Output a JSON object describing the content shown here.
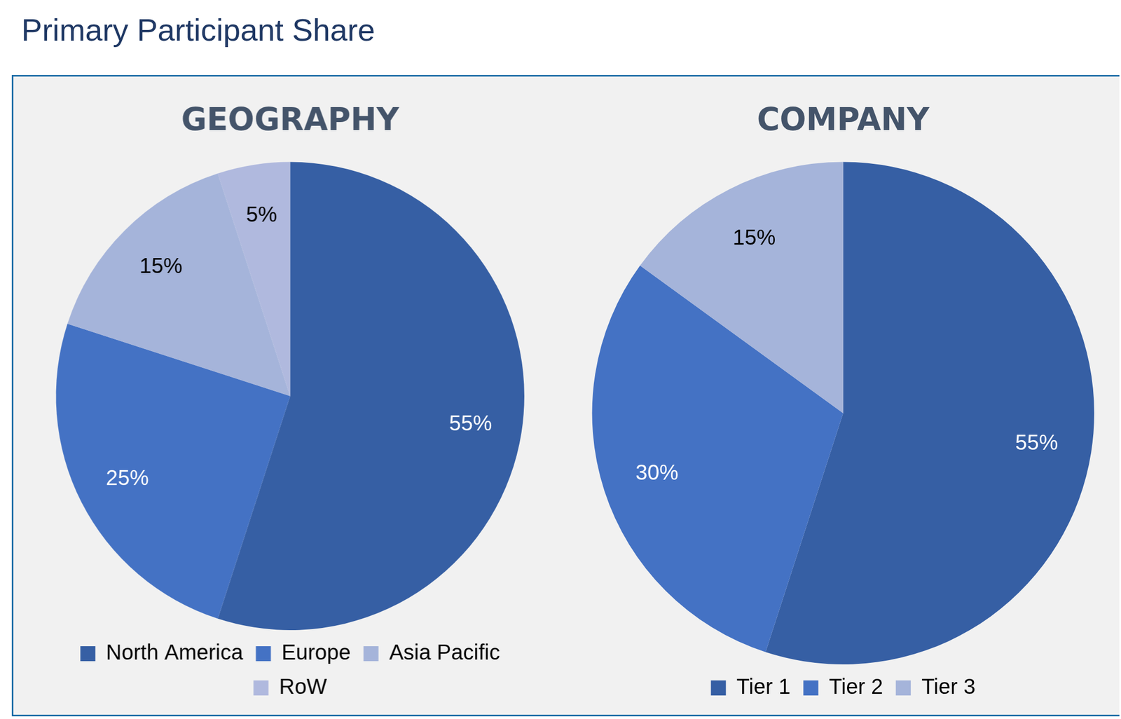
{
  "header": {
    "title": "Primary Participant Share"
  },
  "chart_data": [
    {
      "type": "pie",
      "title": "GEOGRAPHY",
      "categories": [
        "North America",
        "Europe",
        "Asia Pacific",
        "RoW"
      ],
      "values": [
        55,
        25,
        15,
        5
      ],
      "value_labels": [
        "55%",
        "25%",
        "15%",
        "5%"
      ],
      "colors": [
        "#365fa4",
        "#4472c4",
        "#a5b4da",
        "#b0b9de"
      ],
      "data_labels": true,
      "legend": "bottom"
    },
    {
      "type": "pie",
      "title": "COMPANY",
      "categories": [
        "Tier 1",
        "Tier 2",
        "Tier 3"
      ],
      "values": [
        55,
        30,
        15
      ],
      "value_labels": [
        "55%",
        "30%",
        "15%"
      ],
      "colors": [
        "#365fa4",
        "#4472c4",
        "#a5b4da"
      ],
      "data_labels": true,
      "legend": "bottom"
    }
  ]
}
